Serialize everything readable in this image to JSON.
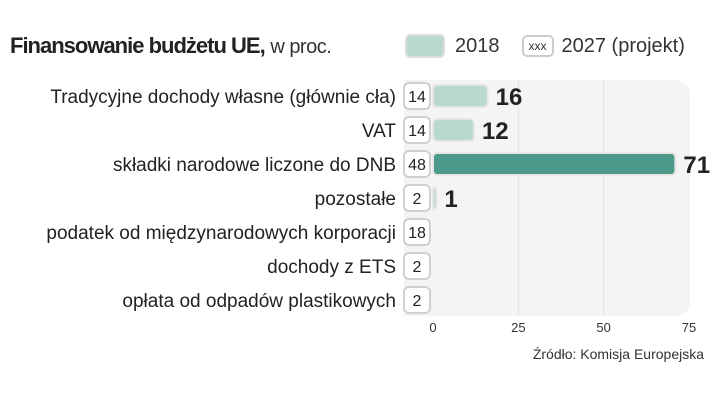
{
  "title": {
    "bold": "Finansowanie budżetu UE,",
    "rest": "w proc."
  },
  "legend": [
    {
      "label": "2018",
      "color": "#b9d8cf"
    },
    {
      "label": "2027 (projekt)",
      "marker": "xxx"
    }
  ],
  "source": "Źródło: Komisja Europejska",
  "chart_data": {
    "type": "bar",
    "orientation": "horizontal",
    "categories": [
      "Tradycyjne dochody własne (głównie cła)",
      "VAT",
      "składki narodowe liczone do DNB",
      "pozostałe",
      "podatek od międzynarodowych korporacji",
      "dochody z ETS",
      "opłata od odpadów plastikowych"
    ],
    "series": [
      {
        "name": "2018",
        "values": [
          16,
          12,
          71,
          1,
          null,
          null,
          null
        ],
        "display": "bars"
      },
      {
        "name": "2027 (projekt)",
        "values": [
          14,
          14,
          48,
          2,
          18,
          2,
          2
        ],
        "display": "boxes"
      }
    ],
    "xlim": [
      0,
      75
    ],
    "xticks": [
      0,
      25,
      50,
      75
    ],
    "grid": true,
    "colors": {
      "bar_light": "#b9d8cf",
      "bar_highlight": "#4e9a8a",
      "highlight_category": "składki narodowe liczone do DNB"
    },
    "legend_position": "top"
  }
}
